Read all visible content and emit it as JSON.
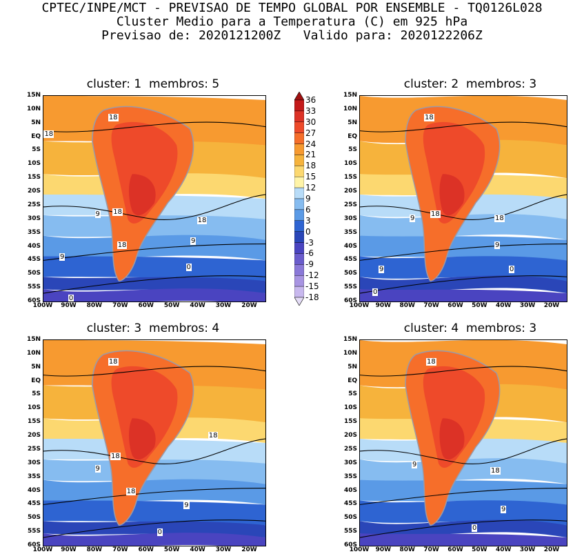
{
  "header": {
    "line1": "CPTEC/INPE/MCT - PREVISAO DE TEMPO GLOBAL POR ENSEMBLE - TQ0126L028",
    "line2": "Cluster Medio para a Temperatura (C) em 925 hPa",
    "line3": "Previsao de: 2020121200Z   Valido para: 2020122206Z"
  },
  "panels": [
    {
      "title": "cluster: 1  membros: 5",
      "contour_labels": [
        "18",
        "18",
        "18",
        "18",
        "18",
        "9",
        "9",
        "9",
        "0",
        "0"
      ]
    },
    {
      "title": "cluster: 2  membros: 3",
      "contour_labels": [
        "18",
        "18",
        "18",
        "9",
        "9",
        "9",
        "0",
        "0"
      ]
    },
    {
      "title": "cluster: 3  membros: 4",
      "contour_labels": [
        "18",
        "18",
        "18",
        "18",
        "9",
        "9",
        "0"
      ]
    },
    {
      "title": "cluster: 4  membros: 3",
      "contour_labels": [
        "18",
        "18",
        "9",
        "9",
        "0"
      ]
    }
  ],
  "axes": {
    "lat_labels": [
      "15N",
      "10N",
      "5N",
      "EQ",
      "5S",
      "10S",
      "15S",
      "20S",
      "25S",
      "30S",
      "35S",
      "40S",
      "45S",
      "50S",
      "55S",
      "60S"
    ],
    "lon_labels": [
      "100W",
      "90W",
      "80W",
      "70W",
      "60W",
      "50W",
      "40W",
      "30W",
      "20W"
    ]
  },
  "colorbar": {
    "labels": [
      "36",
      "33",
      "30",
      "27",
      "24",
      "21",
      "18",
      "15",
      "12",
      "9",
      "6",
      "3",
      "0",
      "-3",
      "-6",
      "-9",
      "-12",
      "-15",
      "-18"
    ],
    "colors": [
      "#a01010",
      "#c41a1a",
      "#dc3226",
      "#ee4a2a",
      "#f66e2a",
      "#f79a30",
      "#f6b33c",
      "#fcd870",
      "#fff4a8",
      "#b8dcf8",
      "#86bcf0",
      "#5a9ae6",
      "#2e64d2",
      "#2a46b8",
      "#4a44c0",
      "#6a5ccc",
      "#8a78d8",
      "#a894e2",
      "#c8b8ee",
      "#e4dcf6"
    ],
    "colors_note_order": "top-to-bottom"
  }
}
